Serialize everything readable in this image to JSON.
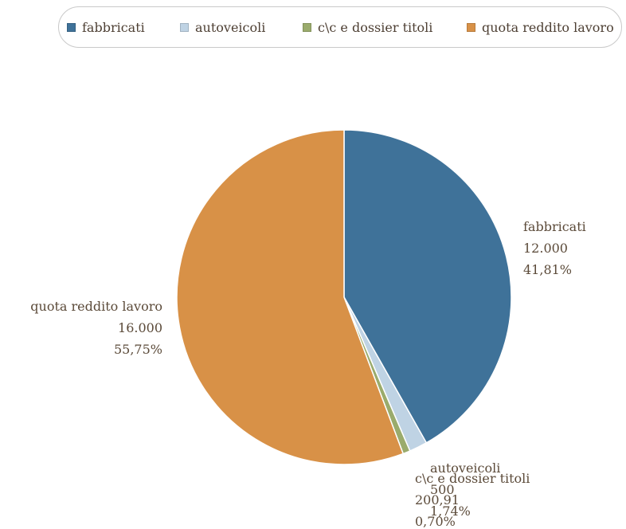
{
  "legend": {
    "items": [
      {
        "label": "fabbricati",
        "color": "#3f7299"
      },
      {
        "label": "autoveicoli",
        "color": "#bfd3e4"
      },
      {
        "label": "c\\c e dossier titoli",
        "color": "#9aab6c"
      },
      {
        "label": "quota reddito lavoro",
        "color": "#d89147"
      }
    ]
  },
  "chart_data": {
    "type": "pie",
    "categories": [
      "fabbricati",
      "autoveicoli",
      "c\\c e dossier titoli",
      "quota reddito lavoro"
    ],
    "values": [
      12000,
      500,
      200.91,
      16000
    ],
    "value_labels": [
      "12.000",
      "500",
      "200,91",
      "16.000"
    ],
    "percent_labels": [
      "41,81%",
      "1,74%",
      "0,70%",
      "55,75%"
    ],
    "colors": [
      "#3f7299",
      "#bfd3e4",
      "#9aab6c",
      "#d89147"
    ],
    "legend_position": "top",
    "start": "top, clockwise"
  }
}
